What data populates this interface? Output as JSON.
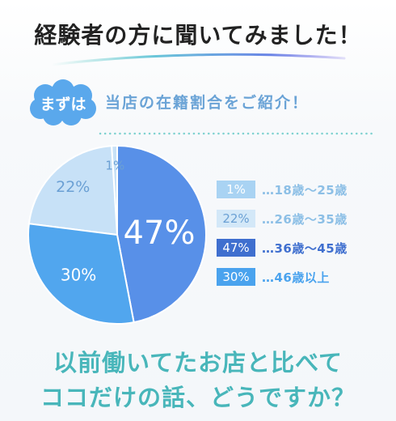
{
  "header": {
    "title": "経験者の方に聞いてみました！"
  },
  "badge": {
    "label": "まずは"
  },
  "subtitle": "当店の在籍割合をご紹介！",
  "colors": {
    "slice_18_25": "#c7e1f7",
    "slice_26_35": "#c7e1f7",
    "slice_36_45": "#5890e8",
    "slice_46_up": "#51a6ee",
    "badge": "#5aa8ec",
    "subtitle": "#6aa3d6",
    "question": "#48b6ba"
  },
  "chart_data": {
    "type": "pie",
    "categories": [
      "18歳〜25歳",
      "26歳〜35歳",
      "36歳〜45歳",
      "46歳以上"
    ],
    "values": [
      1,
      22,
      47,
      30
    ],
    "labels": [
      "1%",
      "22%",
      "47%",
      "30%"
    ]
  },
  "legend": [
    {
      "pct": "1%",
      "text": "…18歳〜25歳"
    },
    {
      "pct": "22%",
      "text": "…26歳〜35歳"
    },
    {
      "pct": "47%",
      "text": "…36歳〜45歳"
    },
    {
      "pct": "30%",
      "text": "…46歳以上"
    }
  ],
  "question": {
    "line1": "以前働いてたお店と比べて",
    "line2": "ココだけの話、どうですか？"
  }
}
